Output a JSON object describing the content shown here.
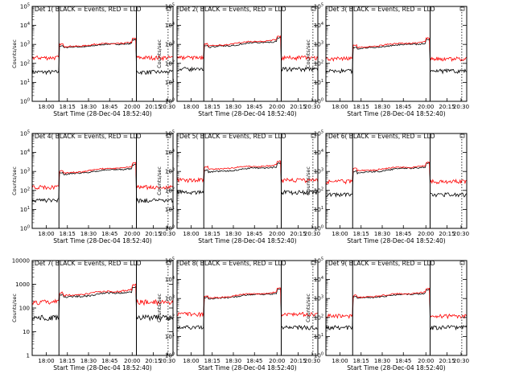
{
  "figure": {
    "ylabel": "Counts/sec",
    "xlabel": "Start Time (28-Dec-04 18:52:40)",
    "x_ticks": [
      "18:00",
      "18:15",
      "18:30",
      "18:45",
      "20:00",
      "20:15",
      "20:30"
    ],
    "series_colors": {
      "events": "#000000",
      "lld": "#ff0000"
    }
  },
  "chart_data": [
    {
      "type": "line",
      "title": "Det 1( BLACK = Events, RED = LLD",
      "y_scale": "log",
      "y_ticks": [
        "10^0",
        "10^1",
        "10^2",
        "10^3",
        "10^4",
        "10^5"
      ],
      "ylim": [
        1,
        100000
      ],
      "grid": false,
      "legend": "none",
      "series": [
        {
          "color": "#000000",
          "baseline": 35,
          "plateau_start": 600,
          "plateau_end": 1200
        },
        {
          "color": "#ff0000",
          "baseline": 200,
          "plateau_start": 700,
          "plateau_end": 1300
        }
      ]
    },
    {
      "type": "line",
      "title": "Det 2( BLACK = Events, RED = LLD",
      "y_scale": "log",
      "y_ticks": [
        "10^0",
        "10^1",
        "10^2",
        "10^3",
        "10^4",
        "10^5"
      ],
      "ylim": [
        1,
        100000
      ],
      "grid": false,
      "legend": "none",
      "series": [
        {
          "color": "#000000",
          "baseline": 50,
          "plateau_start": 600,
          "plateau_end": 1500
        },
        {
          "color": "#ff0000",
          "baseline": 200,
          "plateau_start": 700,
          "plateau_end": 1800
        }
      ]
    },
    {
      "type": "line",
      "title": "Det 3( BLACK = Events, RED = LLD",
      "y_scale": "log",
      "y_ticks": [
        "10^0",
        "10^1",
        "10^2",
        "10^3",
        "10^4",
        "10^5"
      ],
      "ylim": [
        1,
        100000
      ],
      "grid": false,
      "legend": "none",
      "series": [
        {
          "color": "#000000",
          "baseline": 40,
          "plateau_start": 500,
          "plateau_end": 1200
        },
        {
          "color": "#ff0000",
          "baseline": 180,
          "plateau_start": 600,
          "plateau_end": 1400
        }
      ]
    },
    {
      "type": "line",
      "title": "Det 4( BLACK = Events, RED = LLD",
      "y_scale": "log",
      "y_ticks": [
        "10^0",
        "10^1",
        "10^2",
        "10^3",
        "10^4",
        "10^5"
      ],
      "ylim": [
        1,
        100000
      ],
      "grid": false,
      "legend": "none",
      "series": [
        {
          "color": "#000000",
          "baseline": 30,
          "plateau_start": 600,
          "plateau_end": 1500
        },
        {
          "color": "#ff0000",
          "baseline": 150,
          "plateau_start": 700,
          "plateau_end": 1800
        }
      ]
    },
    {
      "type": "line",
      "title": "Det 5( BLACK = Events, RED = LLD",
      "y_scale": "log",
      "y_ticks": [
        "10^0",
        "10^1",
        "10^2",
        "10^3",
        "10^4",
        "10^5"
      ],
      "ylim": [
        1,
        100000
      ],
      "grid": false,
      "legend": "none",
      "series": [
        {
          "color": "#000000",
          "baseline": 80,
          "plateau_start": 800,
          "plateau_end": 1800
        },
        {
          "color": "#ff0000",
          "baseline": 350,
          "plateau_start": 1200,
          "plateau_end": 2200
        }
      ]
    },
    {
      "type": "line",
      "title": "Det 6( BLACK = Events, RED = LLD",
      "y_scale": "log",
      "y_ticks": [
        "10^0",
        "10^1",
        "10^2",
        "10^3",
        "10^4",
        "10^5"
      ],
      "ylim": [
        1,
        100000
      ],
      "grid": false,
      "legend": "none",
      "series": [
        {
          "color": "#000000",
          "baseline": 60,
          "plateau_start": 700,
          "plateau_end": 1800
        },
        {
          "color": "#ff0000",
          "baseline": 300,
          "plateau_start": 1000,
          "plateau_end": 2000
        }
      ]
    },
    {
      "type": "line",
      "title": "Det 7( BLACK = Events, RED = LLD",
      "y_scale": "log",
      "y_ticks": [
        "1",
        "10",
        "100",
        "1000",
        "10000"
      ],
      "ylim": [
        1,
        10000
      ],
      "grid": false,
      "legend": "none",
      "series": [
        {
          "color": "#000000",
          "baseline": 40,
          "plateau_start": 250,
          "plateau_end": 500
        },
        {
          "color": "#ff0000",
          "baseline": 180,
          "plateau_start": 300,
          "plateau_end": 600
        }
      ]
    },
    {
      "type": "line",
      "title": "Det 8( BLACK = Events, RED = LLD",
      "y_scale": "log",
      "y_ticks": [
        "10^0",
        "10^1",
        "10^2",
        "10^3",
        "10^4",
        "10^5"
      ],
      "ylim": [
        1,
        100000
      ],
      "grid": false,
      "legend": "none",
      "series": [
        {
          "color": "#000000",
          "baseline": 30,
          "plateau_start": 800,
          "plateau_end": 2000
        },
        {
          "color": "#ff0000",
          "baseline": 150,
          "plateau_start": 900,
          "plateau_end": 2200
        }
      ]
    },
    {
      "type": "line",
      "title": "Det 9( BLACK = Events, RED = LLD",
      "y_scale": "log",
      "y_ticks": [
        "10^0",
        "10^1",
        "10^2",
        "10^3",
        "10^4",
        "10^5"
      ],
      "ylim": [
        1,
        100000
      ],
      "grid": false,
      "legend": "none",
      "series": [
        {
          "color": "#000000",
          "baseline": 30,
          "plateau_start": 900,
          "plateau_end": 2000
        },
        {
          "color": "#ff0000",
          "baseline": 120,
          "plateau_start": 1000,
          "plateau_end": 2200
        }
      ]
    }
  ]
}
